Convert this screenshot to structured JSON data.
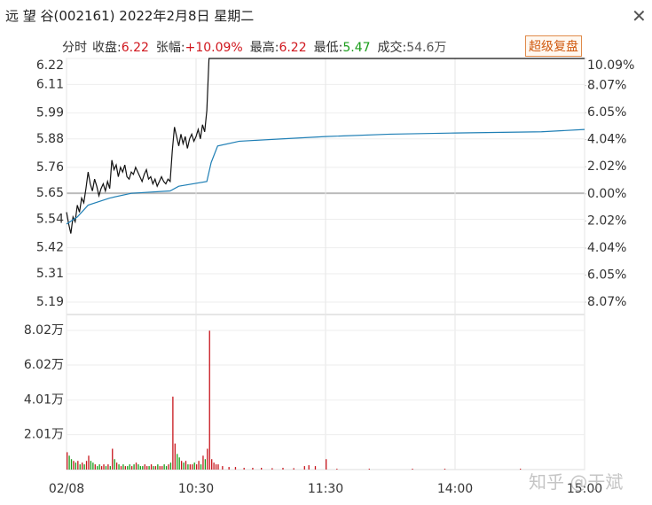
{
  "header": {
    "title": "远 望 谷(002161) 2022年2月8日 星期二",
    "mode": "分时",
    "info": [
      {
        "label": "收盘:",
        "value": "6.22",
        "color": "#d0161d"
      },
      {
        "label": "张幅:",
        "value": "+10.09%",
        "color": "#d0161d"
      },
      {
        "label": "最高:",
        "value": "6.22",
        "color": "#d0161d"
      },
      {
        "label": "最低:",
        "value": "5.47",
        "color": "#1a9c1a"
      },
      {
        "label": "成交:",
        "value": "54.6万",
        "color": "#555555"
      }
    ],
    "button": "超级复盘",
    "watermark": "知乎 @于斌"
  },
  "chart_data": [
    {
      "type": "line",
      "xlim": [
        0,
        240
      ],
      "ylim": [
        5.19,
        6.22
      ],
      "yticks": [
        6.22,
        6.11,
        5.99,
        5.88,
        5.76,
        5.65,
        5.54,
        5.42,
        5.31,
        5.19
      ],
      "y2lim": [
        -8.07,
        10.09
      ],
      "y2ticks": [
        {
          "value": 10.09,
          "label": "10.09%"
        },
        {
          "value": 8.07,
          "label": "8.07%"
        },
        {
          "value": 6.05,
          "label": "6.05%"
        },
        {
          "value": 4.04,
          "label": "4.04%"
        },
        {
          "value": 2.02,
          "label": "2.02%"
        },
        {
          "value": 0,
          "label": "0.00%"
        },
        {
          "value": -2.02,
          "label": "2.02%"
        },
        {
          "value": -4.04,
          "label": "4.04%"
        },
        {
          "value": -6.05,
          "label": "6.05%"
        },
        {
          "value": -8.07,
          "label": "8.07%"
        }
      ],
      "up_color": "#c8161d",
      "down_color": "#1a9c1a",
      "grid": true,
      "series": [
        {
          "color": "#111111",
          "x": [
            0,
            1,
            2,
            3,
            4,
            5,
            6,
            7,
            8,
            9,
            10,
            11,
            12,
            13,
            14,
            15,
            16,
            17,
            18,
            19,
            20,
            21,
            22,
            23,
            24,
            25,
            26,
            27,
            28,
            29,
            30,
            31,
            32,
            33,
            34,
            35,
            36,
            37,
            38,
            39,
            40,
            41,
            42,
            43,
            44,
            45,
            46,
            47,
            48,
            49,
            50,
            51,
            52,
            53,
            54,
            55,
            56,
            57,
            58,
            59,
            60,
            61,
            62,
            63,
            64,
            65,
            66,
            240
          ],
          "values": [
            5.57,
            5.52,
            5.48,
            5.55,
            5.53,
            5.6,
            5.57,
            5.63,
            5.61,
            5.67,
            5.74,
            5.69,
            5.66,
            5.71,
            5.68,
            5.64,
            5.67,
            5.69,
            5.66,
            5.7,
            5.67,
            5.79,
            5.75,
            5.77,
            5.72,
            5.76,
            5.74,
            5.77,
            5.72,
            5.71,
            5.74,
            5.73,
            5.76,
            5.74,
            5.72,
            5.7,
            5.73,
            5.75,
            5.71,
            5.72,
            5.69,
            5.71,
            5.68,
            5.7,
            5.72,
            5.7,
            5.69,
            5.71,
            5.7,
            5.83,
            5.93,
            5.89,
            5.85,
            5.9,
            5.86,
            5.89,
            5.84,
            5.88,
            5.9,
            5.87,
            5.89,
            5.92,
            5.88,
            5.94,
            5.91,
            6.0,
            6.22,
            6.22
          ]
        },
        {
          "color": "#1f7fb5",
          "x": [
            0,
            5,
            10,
            20,
            30,
            48,
            52,
            65,
            67,
            70,
            80,
            100,
            120,
            150,
            180,
            220,
            240
          ],
          "values": [
            5.52,
            5.55,
            5.6,
            5.63,
            5.65,
            5.66,
            5.68,
            5.7,
            5.78,
            5.85,
            5.87,
            5.88,
            5.89,
            5.9,
            5.905,
            5.91,
            5.92
          ]
        }
      ]
    },
    {
      "type": "bar",
      "xlim": [
        0,
        240
      ],
      "xticks": [
        {
          "value": 0,
          "label": "02/08"
        },
        {
          "value": 60,
          "label": "10:30"
        },
        {
          "value": 120,
          "label": "11:30"
        },
        {
          "value": 180,
          "label": "14:00"
        },
        {
          "value": 240,
          "label": "15:00"
        }
      ],
      "ylim": [
        0,
        8.42
      ],
      "yticks": [
        {
          "value": 8.02,
          "label": "8.02万"
        },
        {
          "value": 6.02,
          "label": "6.02万"
        },
        {
          "value": 4.01,
          "label": "4.01万"
        },
        {
          "value": 2.01,
          "label": "2.01万"
        }
      ],
      "x": [
        0,
        1,
        2,
        3,
        4,
        5,
        6,
        7,
        8,
        9,
        10,
        11,
        12,
        13,
        14,
        15,
        16,
        17,
        18,
        19,
        20,
        21,
        22,
        23,
        24,
        25,
        26,
        27,
        28,
        29,
        30,
        31,
        32,
        33,
        34,
        35,
        36,
        37,
        38,
        39,
        40,
        41,
        42,
        43,
        44,
        45,
        46,
        47,
        48,
        49,
        50,
        51,
        52,
        53,
        54,
        55,
        56,
        57,
        58,
        59,
        60,
        61,
        62,
        63,
        64,
        65,
        66,
        67,
        68,
        69,
        70,
        72,
        75,
        78,
        82,
        86,
        90,
        95,
        100,
        105,
        110,
        112,
        115,
        120,
        125,
        140,
        160,
        175,
        210
      ],
      "values": [
        1.0,
        0.8,
        0.6,
        0.5,
        0.4,
        0.5,
        0.3,
        0.4,
        0.3,
        0.5,
        0.8,
        0.5,
        0.4,
        0.3,
        0.2,
        0.3,
        0.2,
        0.3,
        0.2,
        0.3,
        0.2,
        1.2,
        0.6,
        0.4,
        0.3,
        0.2,
        0.3,
        0.2,
        0.2,
        0.3,
        0.2,
        0.3,
        0.4,
        0.3,
        0.2,
        0.2,
        0.3,
        0.2,
        0.2,
        0.3,
        0.2,
        0.2,
        0.3,
        0.2,
        0.2,
        0.3,
        0.2,
        0.3,
        0.4,
        4.2,
        1.5,
        0.9,
        0.7,
        0.5,
        0.4,
        0.5,
        0.3,
        0.3,
        0.3,
        0.4,
        0.3,
        0.5,
        0.3,
        0.8,
        0.6,
        1.2,
        8.0,
        0.6,
        0.4,
        0.3,
        0.3,
        0.2,
        0.15,
        0.15,
        0.1,
        0.1,
        0.1,
        0.08,
        0.1,
        0.08,
        0.2,
        0.25,
        0.2,
        0.6,
        0.05,
        0.05,
        0.05,
        0.05,
        0.05
      ]
    }
  ]
}
